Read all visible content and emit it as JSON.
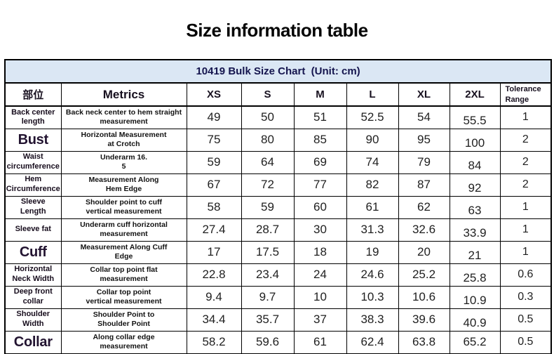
{
  "title": "Size information table",
  "table": {
    "title_bar": "10419 Bulk Size Chart  (Unit: cm)",
    "columns": [
      "部位",
      "Metrics",
      "XS",
      "S",
      "M",
      "L",
      "XL",
      "2XL",
      "Tolerance\nRange"
    ],
    "rows": [
      {
        "part": "Back center\nlength",
        "metric": "Back neck center to hem straight\nmeasurement",
        "values": [
          "49",
          "50",
          "51",
          "52.5",
          "54",
          "55.5"
        ],
        "tolerance": "1",
        "emphasis": false
      },
      {
        "part": "Bust",
        "metric": "Horizontal Measurement\nat Crotch",
        "values": [
          "75",
          "80",
          "85",
          "90",
          "95",
          "100"
        ],
        "tolerance": "2",
        "emphasis": true
      },
      {
        "part": "Waist\ncircumference",
        "metric": "Underarm 16.\n5",
        "values": [
          "59",
          "64",
          "69",
          "74",
          "79",
          "84"
        ],
        "tolerance": "2",
        "emphasis": false
      },
      {
        "part": "Hem\nCircumference",
        "metric": "Measurement Along\nHem Edge",
        "values": [
          "67",
          "72",
          "77",
          "82",
          "87",
          "92"
        ],
        "tolerance": "2",
        "emphasis": false
      },
      {
        "part": "Sleeve\nLength",
        "metric": "Shoulder point to cuff\nvertical measurement",
        "values": [
          "58",
          "59",
          "60",
          "61",
          "62",
          "63"
        ],
        "tolerance": "1",
        "emphasis": false
      },
      {
        "part": "Sleeve fat",
        "metric": "Underarm cuff horizontal\nmeasurement",
        "values": [
          "27.4",
          "28.7",
          "30",
          "31.3",
          "32.6",
          "33.9"
        ],
        "tolerance": "1",
        "emphasis": false
      },
      {
        "part": "Cuff",
        "metric": "Measurement Along Cuff\nEdge",
        "values": [
          "17",
          "17.5",
          "18",
          "19",
          "20",
          "21"
        ],
        "tolerance": "1",
        "emphasis": true
      },
      {
        "part": "Horizontal\nNeck Width",
        "metric": "Collar top point flat\nmeasurement",
        "values": [
          "22.8",
          "23.4",
          "24",
          "24.6",
          "25.2",
          "25.8"
        ],
        "tolerance": "0.6",
        "emphasis": false
      },
      {
        "part": "Deep front\ncollar",
        "metric": "Collar top point\nvertical measurement",
        "values": [
          "9.4",
          "9.7",
          "10",
          "10.3",
          "10.6",
          "10.9"
        ],
        "tolerance": "0.3",
        "emphasis": false
      },
      {
        "part": "Shoulder\nWidth",
        "metric": "Shoulder Point to\nShoulder Point",
        "values": [
          "34.4",
          "35.7",
          "37",
          "38.3",
          "39.6",
          "40.9"
        ],
        "tolerance": "0.5",
        "emphasis": false
      },
      {
        "part": "Collar",
        "metric": "Along collar edge\nmeasurement",
        "values": [
          "58.2",
          "59.6",
          "61",
          "62.4",
          "63.8",
          "65.2"
        ],
        "tolerance": "0.5",
        "emphasis": true
      }
    ],
    "size_keys": [
      "xs",
      "s",
      "m",
      "l",
      "xl",
      "2xl"
    ]
  }
}
